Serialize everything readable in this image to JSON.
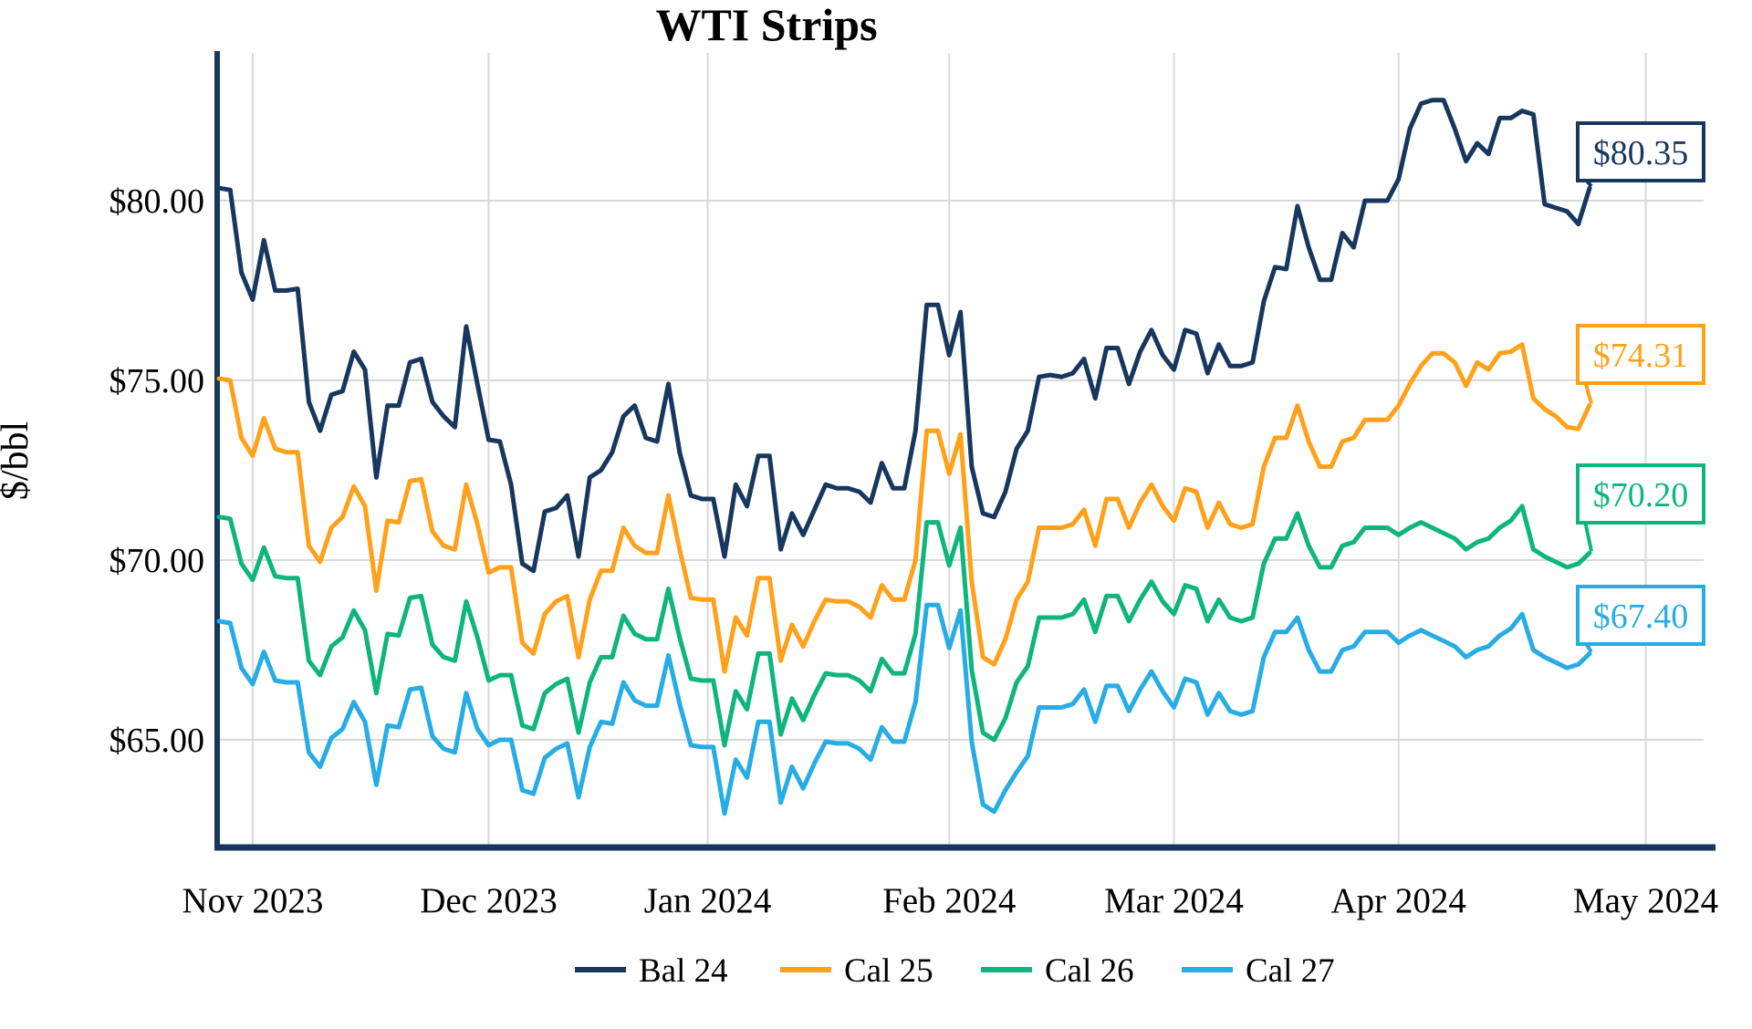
{
  "chart_data": {
    "type": "line",
    "title": "WTI Strips",
    "ylabel": "$/bbl",
    "grid": true,
    "legend_position": "bottom-center",
    "axis_color": "#17375E",
    "gridline_color": "#D9D9D9",
    "background": "#FFFFFF",
    "ylim": [
      62.0,
      84.2
    ],
    "y_ticks": [
      {
        "label": "$80.00",
        "value": 80.0
      },
      {
        "label": "$75.00",
        "value": 75.0
      },
      {
        "label": "$70.00",
        "value": 70.0
      },
      {
        "label": "$65.00",
        "value": 65.0
      }
    ],
    "x_ticks": [
      {
        "label": "Nov 2023",
        "day": 3
      },
      {
        "label": "Dec 2023",
        "day": 24
      },
      {
        "label": "Jan 2024",
        "day": 43.5
      },
      {
        "label": "Feb 2024",
        "day": 65
      },
      {
        "label": "Mar 2024",
        "day": 85
      },
      {
        "label": "Apr 2024",
        "day": 105
      },
      {
        "label": "May 2024",
        "day": 127
      }
    ],
    "x_range_note": "daily close values, late Oct 2023 through late Apr 2024",
    "series": [
      {
        "name": "Bal 24",
        "color": "#17375E",
        "end_label": "$80.35",
        "end_value": 80.35,
        "values": [
          80.35,
          80.3,
          78.0,
          77.25,
          78.9,
          77.5,
          77.5,
          77.55,
          74.4,
          73.6,
          74.6,
          74.7,
          75.8,
          75.3,
          72.3,
          74.3,
          74.3,
          75.5,
          75.6,
          74.4,
          74.0,
          73.7,
          76.5,
          74.9,
          73.35,
          73.3,
          72.1,
          69.9,
          69.7,
          71.35,
          71.45,
          71.8,
          70.1,
          72.3,
          72.5,
          73.0,
          74.0,
          74.3,
          73.4,
          73.3,
          74.9,
          73.0,
          71.8,
          71.7,
          71.7,
          70.1,
          72.1,
          71.5,
          72.9,
          72.9,
          70.3,
          71.3,
          70.7,
          71.4,
          72.1,
          72.0,
          72.0,
          71.9,
          71.6,
          72.7,
          72.0,
          72.0,
          73.6,
          77.1,
          77.1,
          75.7,
          76.9,
          72.6,
          71.3,
          71.2,
          71.9,
          73.1,
          73.6,
          75.1,
          75.15,
          75.1,
          75.2,
          75.6,
          74.5,
          75.9,
          75.9,
          74.9,
          75.8,
          76.4,
          75.7,
          75.3,
          76.4,
          76.3,
          75.2,
          76.0,
          75.4,
          75.4,
          75.5,
          77.2,
          78.15,
          78.1,
          79.85,
          78.7,
          77.8,
          77.8,
          79.1,
          78.7,
          80.0,
          80.0,
          80.0,
          80.6,
          82.0,
          82.7,
          82.8,
          82.8,
          82.0,
          81.1,
          81.6,
          81.3,
          82.3,
          82.3,
          82.5,
          82.4,
          79.9,
          79.8,
          79.7,
          79.35,
          80.35
        ]
      },
      {
        "name": "Cal 25",
        "color": "#FFA11B",
        "end_label": "$74.31",
        "end_value": 74.31,
        "values": [
          75.05,
          75.0,
          73.4,
          72.9,
          73.95,
          73.1,
          73.0,
          73.0,
          70.4,
          69.95,
          70.9,
          71.2,
          72.05,
          71.5,
          69.15,
          71.1,
          71.05,
          72.2,
          72.25,
          70.8,
          70.4,
          70.3,
          72.1,
          71.0,
          69.65,
          69.8,
          69.8,
          67.7,
          67.4,
          68.5,
          68.85,
          69.0,
          67.3,
          68.9,
          69.7,
          69.7,
          70.9,
          70.4,
          70.2,
          70.2,
          71.8,
          70.3,
          68.95,
          68.9,
          68.9,
          66.9,
          68.4,
          67.9,
          69.5,
          69.5,
          67.2,
          68.2,
          67.6,
          68.3,
          68.9,
          68.85,
          68.85,
          68.7,
          68.4,
          69.3,
          68.9,
          68.9,
          70.0,
          73.6,
          73.6,
          72.4,
          73.5,
          69.4,
          67.3,
          67.1,
          67.8,
          68.9,
          69.4,
          70.9,
          70.9,
          70.9,
          71.0,
          71.4,
          70.4,
          71.7,
          71.7,
          70.9,
          71.6,
          72.1,
          71.5,
          71.1,
          72.0,
          71.9,
          70.9,
          71.6,
          71.0,
          70.9,
          71.0,
          72.6,
          73.4,
          73.4,
          74.3,
          73.3,
          72.6,
          72.6,
          73.3,
          73.4,
          73.9,
          73.9,
          73.9,
          74.3,
          74.9,
          75.4,
          75.75,
          75.75,
          75.5,
          74.85,
          75.5,
          75.3,
          75.75,
          75.8,
          76.0,
          74.5,
          74.2,
          74.0,
          73.7,
          73.65,
          74.31
        ]
      },
      {
        "name": "Cal 26",
        "color": "#0EB57D",
        "end_label": "$70.20",
        "end_value": 70.2,
        "values": [
          71.2,
          71.15,
          69.9,
          69.45,
          70.35,
          69.55,
          69.5,
          69.5,
          67.2,
          66.8,
          67.6,
          67.85,
          68.6,
          68.05,
          66.3,
          67.95,
          67.9,
          68.95,
          69.0,
          67.65,
          67.3,
          67.2,
          68.85,
          67.85,
          66.65,
          66.8,
          66.8,
          65.4,
          65.3,
          66.3,
          66.55,
          66.7,
          65.2,
          66.6,
          67.3,
          67.3,
          68.45,
          67.95,
          67.8,
          67.8,
          69.2,
          67.85,
          66.7,
          66.65,
          66.65,
          64.85,
          66.35,
          65.85,
          67.4,
          67.4,
          65.15,
          66.15,
          65.55,
          66.25,
          66.85,
          66.8,
          66.8,
          66.65,
          66.35,
          67.25,
          66.85,
          66.85,
          67.95,
          71.05,
          71.05,
          69.85,
          70.9,
          66.95,
          65.2,
          65.0,
          65.6,
          66.6,
          67.05,
          68.4,
          68.4,
          68.4,
          68.5,
          68.9,
          68.0,
          69.0,
          69.0,
          68.3,
          68.9,
          69.4,
          68.85,
          68.5,
          69.3,
          69.2,
          68.3,
          68.9,
          68.4,
          68.3,
          68.4,
          69.9,
          70.6,
          70.6,
          71.3,
          70.4,
          69.8,
          69.8,
          70.4,
          70.5,
          70.9,
          70.9,
          70.9,
          70.7,
          70.9,
          71.05,
          70.9,
          70.75,
          70.6,
          70.3,
          70.5,
          70.6,
          70.9,
          71.1,
          71.5,
          70.3,
          70.1,
          69.95,
          69.8,
          69.9,
          70.2
        ]
      },
      {
        "name": "Cal 27",
        "color": "#27ACE4",
        "end_label": "$67.40",
        "end_value": 67.4,
        "values": [
          68.3,
          68.25,
          67.0,
          66.55,
          67.45,
          66.65,
          66.6,
          66.6,
          64.65,
          64.25,
          65.05,
          65.3,
          66.05,
          65.5,
          63.75,
          65.4,
          65.35,
          66.4,
          66.45,
          65.1,
          64.75,
          64.65,
          66.3,
          65.3,
          64.85,
          65.0,
          65.0,
          63.6,
          63.5,
          64.5,
          64.75,
          64.9,
          63.4,
          64.8,
          65.5,
          65.45,
          66.6,
          66.1,
          65.95,
          65.95,
          67.35,
          66.0,
          64.85,
          64.8,
          64.8,
          62.95,
          64.45,
          63.95,
          65.5,
          65.5,
          63.25,
          64.25,
          63.65,
          64.35,
          64.95,
          64.9,
          64.9,
          64.75,
          64.45,
          65.35,
          64.95,
          64.95,
          66.05,
          68.75,
          68.75,
          67.55,
          68.6,
          64.95,
          63.2,
          63.0,
          63.6,
          64.1,
          64.55,
          65.9,
          65.9,
          65.9,
          66.0,
          66.4,
          65.5,
          66.5,
          66.5,
          65.8,
          66.4,
          66.9,
          66.35,
          65.9,
          66.7,
          66.6,
          65.7,
          66.3,
          65.8,
          65.7,
          65.8,
          67.3,
          68.0,
          68.0,
          68.4,
          67.5,
          66.9,
          66.9,
          67.5,
          67.6,
          68.0,
          68.0,
          68.0,
          67.7,
          67.9,
          68.05,
          67.9,
          67.75,
          67.6,
          67.3,
          67.5,
          67.6,
          67.9,
          68.1,
          68.5,
          67.5,
          67.3,
          67.15,
          67.0,
          67.1,
          67.4
        ]
      }
    ]
  }
}
